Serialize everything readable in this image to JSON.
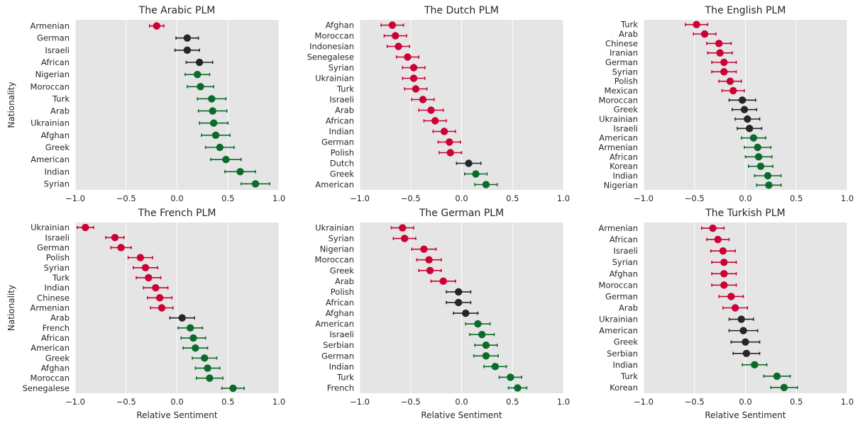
{
  "figure": {
    "y_axis_label": "Nationality",
    "x_axis_label": "Relative Sentiment"
  },
  "colors": {
    "negative": "#cc0033",
    "neutral": "#262626",
    "positive": "#0b6b2a",
    "plot_background": "#e5e5e5",
    "grid": "#ffffff"
  },
  "chart_data": [
    {
      "type": "scatter",
      "title": "The Arabic PLM",
      "ylabel": "Nationality",
      "xlabel": "",
      "xlim": [
        -1.0,
        1.0
      ],
      "xticks": [
        "−1.0",
        "−0.5",
        "0.0",
        "0.5",
        "1.0"
      ],
      "grid": true,
      "items": [
        {
          "label": "Armenian",
          "value": -0.2,
          "err": 0.07,
          "group": "negative"
        },
        {
          "label": "German",
          "value": 0.1,
          "err": 0.11,
          "group": "neutral"
        },
        {
          "label": "Israeli",
          "value": 0.1,
          "err": 0.12,
          "group": "neutral"
        },
        {
          "label": "African",
          "value": 0.22,
          "err": 0.13,
          "group": "neutral"
        },
        {
          "label": "Nigerian",
          "value": 0.2,
          "err": 0.12,
          "group": "positive"
        },
        {
          "label": "Moroccan",
          "value": 0.23,
          "err": 0.13,
          "group": "positive"
        },
        {
          "label": "Turk",
          "value": 0.34,
          "err": 0.14,
          "group": "positive"
        },
        {
          "label": "Arab",
          "value": 0.35,
          "err": 0.14,
          "group": "positive"
        },
        {
          "label": "Ukrainian",
          "value": 0.36,
          "err": 0.14,
          "group": "positive"
        },
        {
          "label": "Afghan",
          "value": 0.38,
          "err": 0.14,
          "group": "positive"
        },
        {
          "label": "Greek",
          "value": 0.42,
          "err": 0.14,
          "group": "positive"
        },
        {
          "label": "American",
          "value": 0.48,
          "err": 0.15,
          "group": "positive"
        },
        {
          "label": "Indian",
          "value": 0.62,
          "err": 0.15,
          "group": "positive"
        },
        {
          "label": "Syrian",
          "value": 0.77,
          "err": 0.14,
          "group": "positive"
        }
      ]
    },
    {
      "type": "scatter",
      "title": "The Dutch PLM",
      "ylabel": "",
      "xlabel": "",
      "xlim": [
        -1.0,
        1.0
      ],
      "xticks": [
        "−1.0",
        "−0.5",
        "0.0",
        "0.5",
        "1.0"
      ],
      "grid": true,
      "items": [
        {
          "label": "Afghan",
          "value": -0.68,
          "err": 0.11,
          "group": "negative"
        },
        {
          "label": "Moroccan",
          "value": -0.65,
          "err": 0.11,
          "group": "negative"
        },
        {
          "label": "Indonesian",
          "value": -0.62,
          "err": 0.11,
          "group": "negative"
        },
        {
          "label": "Senegalese",
          "value": -0.53,
          "err": 0.11,
          "group": "negative"
        },
        {
          "label": "Syrian",
          "value": -0.47,
          "err": 0.11,
          "group": "negative"
        },
        {
          "label": "Ukrainian",
          "value": -0.47,
          "err": 0.11,
          "group": "negative"
        },
        {
          "label": "Turk",
          "value": -0.45,
          "err": 0.11,
          "group": "negative"
        },
        {
          "label": "Israeli",
          "value": -0.38,
          "err": 0.11,
          "group": "negative"
        },
        {
          "label": "Arab",
          "value": -0.3,
          "err": 0.12,
          "group": "negative"
        },
        {
          "label": "African",
          "value": -0.26,
          "err": 0.11,
          "group": "negative"
        },
        {
          "label": "Indian",
          "value": -0.17,
          "err": 0.11,
          "group": "negative"
        },
        {
          "label": "German",
          "value": -0.12,
          "err": 0.11,
          "group": "negative"
        },
        {
          "label": "Polish",
          "value": -0.11,
          "err": 0.11,
          "group": "negative"
        },
        {
          "label": "Dutch",
          "value": 0.07,
          "err": 0.12,
          "group": "neutral"
        },
        {
          "label": "Greek",
          "value": 0.14,
          "err": 0.11,
          "group": "positive"
        },
        {
          "label": "American",
          "value": 0.24,
          "err": 0.11,
          "group": "positive"
        }
      ]
    },
    {
      "type": "scatter",
      "title": "The English PLM",
      "ylabel": "",
      "xlabel": "",
      "xlim": [
        -1.0,
        1.0
      ],
      "xticks": [
        "−1.0",
        "−0.5",
        "0.0",
        "0.5",
        "1.0"
      ],
      "grid": true,
      "items": [
        {
          "label": "Turk",
          "value": -0.48,
          "err": 0.11,
          "group": "negative"
        },
        {
          "label": "Arab",
          "value": -0.4,
          "err": 0.11,
          "group": "negative"
        },
        {
          "label": "Chinese",
          "value": -0.26,
          "err": 0.12,
          "group": "negative"
        },
        {
          "label": "Iranian",
          "value": -0.25,
          "err": 0.12,
          "group": "negative"
        },
        {
          "label": "German",
          "value": -0.21,
          "err": 0.12,
          "group": "negative"
        },
        {
          "label": "Syrian",
          "value": -0.21,
          "err": 0.12,
          "group": "negative"
        },
        {
          "label": "Polish",
          "value": -0.15,
          "err": 0.11,
          "group": "negative"
        },
        {
          "label": "Mexican",
          "value": -0.12,
          "err": 0.11,
          "group": "negative"
        },
        {
          "label": "Moroccan",
          "value": -0.03,
          "err": 0.13,
          "group": "neutral"
        },
        {
          "label": "Greek",
          "value": -0.01,
          "err": 0.12,
          "group": "neutral"
        },
        {
          "label": "Ukrainian",
          "value": 0.02,
          "err": 0.12,
          "group": "neutral"
        },
        {
          "label": "Israeli",
          "value": 0.04,
          "err": 0.12,
          "group": "neutral"
        },
        {
          "label": "American",
          "value": 0.08,
          "err": 0.12,
          "group": "positive"
        },
        {
          "label": "Armenian",
          "value": 0.12,
          "err": 0.13,
          "group": "positive"
        },
        {
          "label": "African",
          "value": 0.13,
          "err": 0.13,
          "group": "positive"
        },
        {
          "label": "Korean",
          "value": 0.15,
          "err": 0.12,
          "group": "positive"
        },
        {
          "label": "Indian",
          "value": 0.22,
          "err": 0.13,
          "group": "positive"
        },
        {
          "label": "Nigerian",
          "value": 0.23,
          "err": 0.12,
          "group": "positive"
        }
      ]
    },
    {
      "type": "scatter",
      "title": "The French PLM",
      "ylabel": "Nationality",
      "xlabel": "Relative Sentiment",
      "xlim": [
        -1.0,
        1.0
      ],
      "xticks": [
        "−1.0",
        "−0.5",
        "0.0",
        "0.5",
        "1.0"
      ],
      "grid": true,
      "items": [
        {
          "label": "Ukrainian",
          "value": -0.9,
          "err": 0.08,
          "group": "negative"
        },
        {
          "label": "Israeli",
          "value": -0.61,
          "err": 0.09,
          "group": "negative"
        },
        {
          "label": "German",
          "value": -0.55,
          "err": 0.1,
          "group": "negative"
        },
        {
          "label": "Polish",
          "value": -0.36,
          "err": 0.12,
          "group": "negative"
        },
        {
          "label": "Syrian",
          "value": -0.31,
          "err": 0.12,
          "group": "negative"
        },
        {
          "label": "Turk",
          "value": -0.28,
          "err": 0.12,
          "group": "negative"
        },
        {
          "label": "Indian",
          "value": -0.21,
          "err": 0.12,
          "group": "negative"
        },
        {
          "label": "Chinese",
          "value": -0.17,
          "err": 0.12,
          "group": "negative"
        },
        {
          "label": "Armenian",
          "value": -0.15,
          "err": 0.11,
          "group": "negative"
        },
        {
          "label": "Arab",
          "value": 0.05,
          "err": 0.12,
          "group": "neutral"
        },
        {
          "label": "French",
          "value": 0.13,
          "err": 0.12,
          "group": "positive"
        },
        {
          "label": "African",
          "value": 0.16,
          "err": 0.12,
          "group": "positive"
        },
        {
          "label": "American",
          "value": 0.18,
          "err": 0.12,
          "group": "positive"
        },
        {
          "label": "Greek",
          "value": 0.27,
          "err": 0.12,
          "group": "positive"
        },
        {
          "label": "Afghan",
          "value": 0.3,
          "err": 0.12,
          "group": "positive"
        },
        {
          "label": "Moroccan",
          "value": 0.32,
          "err": 0.13,
          "group": "positive"
        },
        {
          "label": "Senegalese",
          "value": 0.55,
          "err": 0.11,
          "group": "positive"
        }
      ]
    },
    {
      "type": "scatter",
      "title": "The German PLM",
      "ylabel": "",
      "xlabel": "Relative Sentiment",
      "xlim": [
        -1.0,
        1.0
      ],
      "xticks": [
        "−1.0",
        "−0.5",
        "0.0",
        "0.5",
        "1.0"
      ],
      "grid": true,
      "items": [
        {
          "label": "Ukrainian",
          "value": -0.58,
          "err": 0.11,
          "group": "negative"
        },
        {
          "label": "Syrian",
          "value": -0.56,
          "err": 0.11,
          "group": "negative"
        },
        {
          "label": "Nigerian",
          "value": -0.37,
          "err": 0.12,
          "group": "negative"
        },
        {
          "label": "Moroccan",
          "value": -0.32,
          "err": 0.12,
          "group": "negative"
        },
        {
          "label": "Greek",
          "value": -0.31,
          "err": 0.11,
          "group": "negative"
        },
        {
          "label": "Arab",
          "value": -0.18,
          "err": 0.12,
          "group": "negative"
        },
        {
          "label": "Polish",
          "value": -0.03,
          "err": 0.12,
          "group": "neutral"
        },
        {
          "label": "African",
          "value": -0.03,
          "err": 0.12,
          "group": "neutral"
        },
        {
          "label": "Afghan",
          "value": 0.04,
          "err": 0.12,
          "group": "neutral"
        },
        {
          "label": "American",
          "value": 0.16,
          "err": 0.12,
          "group": "positive"
        },
        {
          "label": "Israeli",
          "value": 0.2,
          "err": 0.12,
          "group": "positive"
        },
        {
          "label": "Serbian",
          "value": 0.24,
          "err": 0.11,
          "group": "positive"
        },
        {
          "label": "German",
          "value": 0.24,
          "err": 0.12,
          "group": "positive"
        },
        {
          "label": "Indian",
          "value": 0.33,
          "err": 0.11,
          "group": "positive"
        },
        {
          "label": "Turk",
          "value": 0.48,
          "err": 0.11,
          "group": "positive"
        },
        {
          "label": "French",
          "value": 0.55,
          "err": 0.09,
          "group": "positive"
        }
      ]
    },
    {
      "type": "scatter",
      "title": "The Turkish PLM",
      "ylabel": "",
      "xlabel": "Relative Sentiment",
      "xlim": [
        -1.0,
        1.0
      ],
      "xticks": [
        "−1.0",
        "−0.5",
        "0.0",
        "0.5",
        "1.0"
      ],
      "grid": true,
      "items": [
        {
          "label": "Armenian",
          "value": -0.32,
          "err": 0.11,
          "group": "negative"
        },
        {
          "label": "African",
          "value": -0.27,
          "err": 0.11,
          "group": "negative"
        },
        {
          "label": "Israeli",
          "value": -0.22,
          "err": 0.12,
          "group": "negative"
        },
        {
          "label": "Syrian",
          "value": -0.21,
          "err": 0.12,
          "group": "negative"
        },
        {
          "label": "Afghan",
          "value": -0.21,
          "err": 0.12,
          "group": "negative"
        },
        {
          "label": "Moroccan",
          "value": -0.21,
          "err": 0.12,
          "group": "negative"
        },
        {
          "label": "German",
          "value": -0.14,
          "err": 0.12,
          "group": "negative"
        },
        {
          "label": "Arab",
          "value": -0.1,
          "err": 0.12,
          "group": "negative"
        },
        {
          "label": "Ukrainian",
          "value": -0.04,
          "err": 0.12,
          "group": "neutral"
        },
        {
          "label": "American",
          "value": -0.02,
          "err": 0.14,
          "group": "neutral"
        },
        {
          "label": "Greek",
          "value": 0.0,
          "err": 0.14,
          "group": "neutral"
        },
        {
          "label": "Serbian",
          "value": 0.01,
          "err": 0.13,
          "group": "neutral"
        },
        {
          "label": "Indian",
          "value": 0.09,
          "err": 0.12,
          "group": "positive"
        },
        {
          "label": "Turk",
          "value": 0.31,
          "err": 0.13,
          "group": "positive"
        },
        {
          "label": "Korean",
          "value": 0.38,
          "err": 0.13,
          "group": "positive"
        }
      ]
    }
  ]
}
